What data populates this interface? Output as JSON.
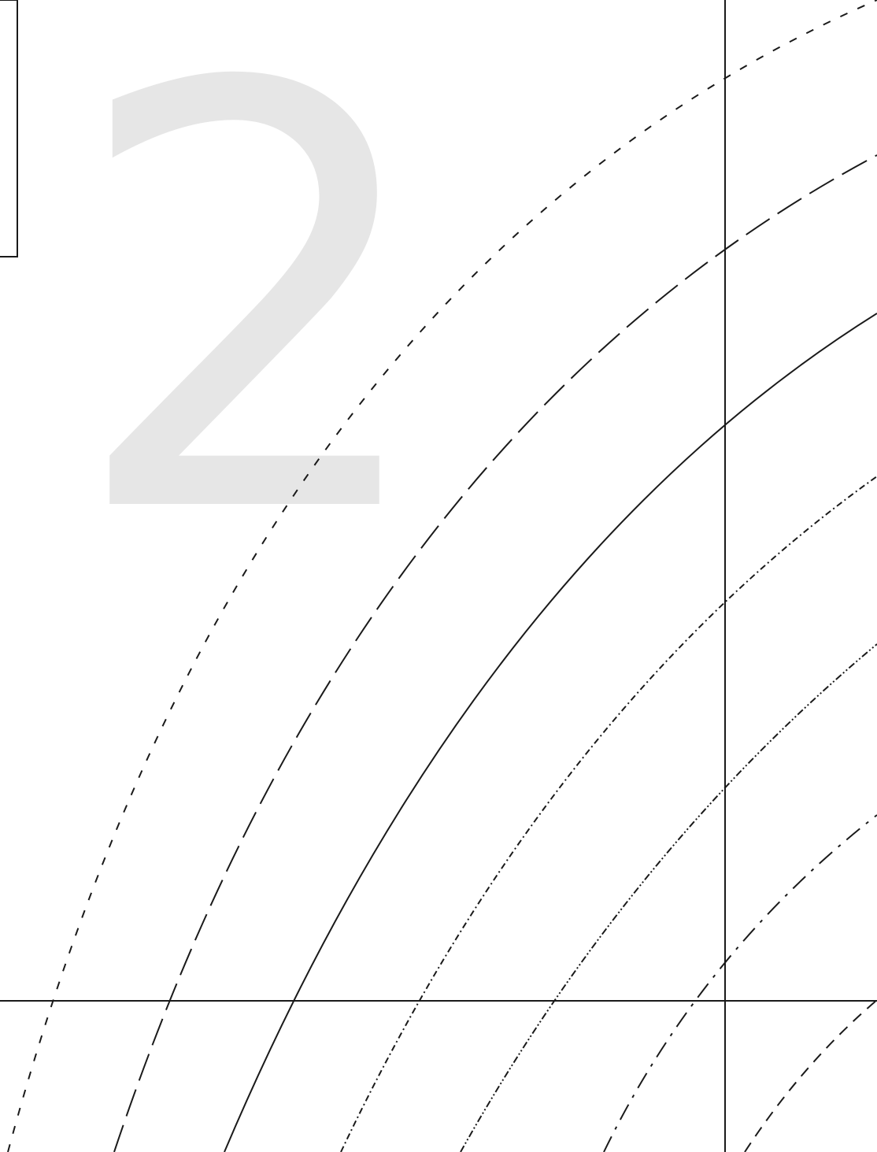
{
  "page": {
    "big_numeral": "2",
    "colors": {
      "background": "#ffffff",
      "ink": "#1a1a1a",
      "numeral": "#e6e6e6"
    }
  }
}
